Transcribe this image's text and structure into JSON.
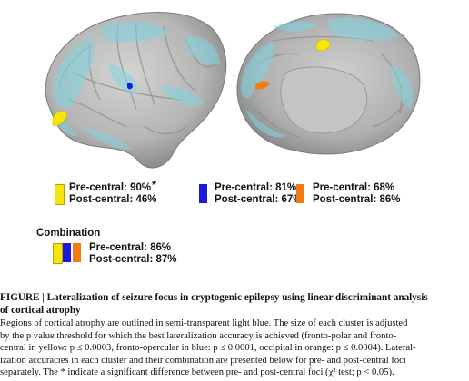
{
  "legend": {
    "items": [
      {
        "color": "#f5e50a",
        "pre": "Pre-central: 90%",
        "post": "Post-central: 46%",
        "star": "*"
      },
      {
        "color": "#1a1adc",
        "pre": "Pre-central: 81%",
        "post": "Post-central: 67%"
      },
      {
        "color": "#f47b10",
        "pre": "Pre-central: 68%",
        "post": "Post-central: 86%"
      }
    ],
    "combination": {
      "title": "Combination",
      "colors": [
        "#f5e50a",
        "#1a1adc",
        "#f47b10"
      ],
      "pre": "Pre-central: 86%",
      "post": "Post-central: 87%"
    }
  },
  "caption": {
    "title_line1": "FIGURE | Lateralization of seizure focus in cryptogenic epilepsy using linear discriminant analysis",
    "title_line2": "of cortical atrophy",
    "body_lines": [
      "Regions of cortical atrophy are outlined in semi-transparent light blue.  The size of each cluster is adjusted",
      "by the p value threshold for which the best lateralization accuracy is achieved (fronto-polar and fronto-",
      "central in yellow: p ≤ 0.0003, fronto-opercular in blue: p ≤ 0.0001, occipital in orange: p ≤ 0.0004). Lateral-",
      "ization accuracies in each cluster and their combination are presented below for pre- and post-central foci",
      "separately.  The * indicate a significant difference between pre- and post-central foci (χ² test; p < 0.05)."
    ]
  },
  "colors": {
    "cortex": "#b9b9b9",
    "atrophy": "#7fd6e0",
    "yellow": "#f5e50a",
    "blue": "#1a1adc",
    "orange": "#f47b10"
  }
}
